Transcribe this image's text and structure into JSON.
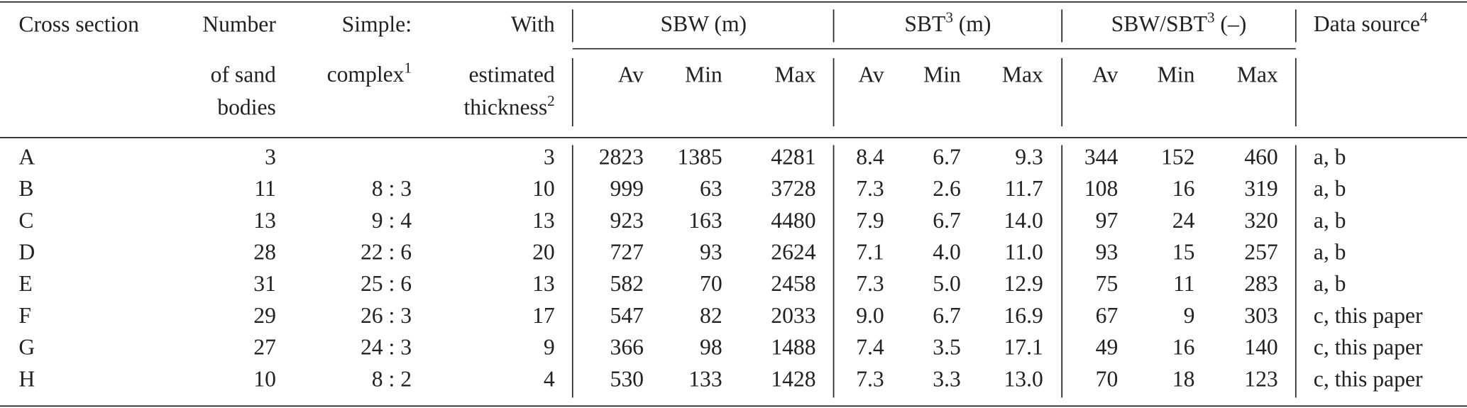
{
  "table": {
    "header": {
      "cross_section": "Cross section",
      "number": [
        "Number",
        "of sand",
        "bodies"
      ],
      "simple": [
        "Simple:",
        {
          "text": "complex",
          "sup": "1"
        }
      ],
      "with": [
        "With",
        "estimated",
        {
          "text": "thickness",
          "sup": "2"
        }
      ],
      "groups": [
        {
          "title": {
            "text": "SBW (m)"
          },
          "sub": [
            "Av",
            "Min",
            "Max"
          ]
        },
        {
          "title": {
            "text": "SBT",
            "sup": "3",
            "tail": " (m)"
          },
          "sub": [
            "Av",
            "Min",
            "Max"
          ]
        },
        {
          "title": {
            "text": "SBW/SBT",
            "sup": "3",
            "tail": " (–)"
          },
          "sub": [
            "Av",
            "Min",
            "Max"
          ]
        }
      ],
      "data_source": {
        "text": "Data source",
        "sup": "4"
      }
    },
    "rows": [
      [
        "A",
        "3",
        null,
        "3",
        "2823",
        "1385",
        "4281",
        "8.4",
        "6.7",
        "9.3",
        "344",
        "152",
        "460",
        "a, b"
      ],
      [
        "B",
        "11",
        "8 : 3",
        "10",
        "999",
        "63",
        "3728",
        "7.3",
        "2.6",
        "11.7",
        "108",
        "16",
        "319",
        "a, b"
      ],
      [
        "C",
        "13",
        "9 : 4",
        "13",
        "923",
        "163",
        "4480",
        "7.9",
        "6.7",
        "14.0",
        "97",
        "24",
        "320",
        "a, b"
      ],
      [
        "D",
        "28",
        "22 : 6",
        "20",
        "727",
        "93",
        "2624",
        "7.1",
        "4.0",
        "11.0",
        "93",
        "15",
        "257",
        "a, b"
      ],
      [
        "E",
        "31",
        "25 : 6",
        "13",
        "582",
        "70",
        "2458",
        "7.3",
        "5.0",
        "12.9",
        "75",
        "11",
        "283",
        "a, b"
      ],
      [
        "F",
        "29",
        "26 : 3",
        "17",
        "547",
        "82",
        "2033",
        "9.0",
        "6.7",
        "16.9",
        "67",
        "9",
        "303",
        "c, this paper"
      ],
      [
        "G",
        "27",
        "24 : 3",
        "9",
        "366",
        "98",
        "1488",
        "7.4",
        "3.5",
        "17.1",
        "49",
        "16",
        "140",
        "c, this paper"
      ],
      [
        "H",
        "10",
        "8 : 2",
        "4",
        "530",
        "133",
        "1428",
        "7.3",
        "3.3",
        "13.0",
        "70",
        "18",
        "123",
        "c, this paper"
      ]
    ]
  }
}
